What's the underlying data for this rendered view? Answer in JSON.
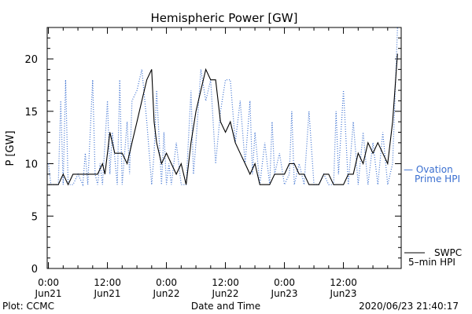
{
  "chart_data": {
    "type": "line",
    "title": "Hemispheric Power [GW]",
    "xlabel": "Date and Time",
    "ylabel": "P [GW]",
    "ylim": [
      0,
      23
    ],
    "yticks": [
      0,
      5,
      10,
      15,
      20
    ],
    "xlim": [
      -0.25,
      71.75
    ],
    "x_unit": "hours since 2020/06/21 00:00",
    "xticks": [
      {
        "x": 0,
        "line1": "0:00",
        "line2": "Jun21"
      },
      {
        "x": 12,
        "line1": "12:00",
        "line2": "Jun21"
      },
      {
        "x": 24,
        "line1": "0:00",
        "line2": "Jun22"
      },
      {
        "x": 36,
        "line1": "12:00",
        "line2": "Jun22"
      },
      {
        "x": 48,
        "line1": "0:00",
        "line2": "Jun23"
      },
      {
        "x": 60,
        "line1": "12:00",
        "line2": "Jun23"
      }
    ],
    "grid": false,
    "series": [
      {
        "name": "Ovation Prime HPI",
        "legend_lines": [
          "— Ovation",
          "Prime HPI"
        ],
        "color": "#3a6fd0",
        "style": "dotted",
        "x": [
          0,
          0.5,
          1,
          2,
          2.5,
          3,
          3.5,
          4,
          5,
          6,
          7,
          7.5,
          8,
          9,
          9.5,
          10,
          10.5,
          11,
          12,
          12.5,
          13,
          14,
          14.5,
          15,
          16,
          16.5,
          17,
          18,
          19,
          20,
          21,
          21.5,
          22,
          23,
          23.5,
          24,
          24.5,
          25,
          26,
          27,
          28,
          29,
          29.5,
          30,
          31,
          32,
          33,
          34,
          35,
          36,
          37,
          38,
          39,
          40,
          41,
          41.5,
          42,
          43,
          44,
          45,
          45.5,
          46,
          47,
          48,
          49,
          49.5,
          50,
          51,
          52,
          53,
          54,
          55,
          56,
          57,
          58,
          58.5,
          59,
          60,
          61,
          62,
          63,
          64,
          65,
          66,
          67,
          68,
          69,
          70,
          71
        ],
        "y": [
          10,
          8,
          8,
          8,
          16,
          8,
          18,
          8,
          8,
          9,
          8,
          11,
          8,
          18,
          9,
          8,
          10,
          8,
          16,
          9,
          13,
          8,
          18,
          8,
          14,
          9,
          16,
          17,
          19,
          14,
          8,
          11,
          17,
          8,
          13,
          8,
          10,
          8,
          12,
          8,
          8,
          17,
          9,
          12,
          19,
          16,
          18,
          10,
          15,
          18,
          18,
          12,
          16,
          10,
          16,
          9,
          13,
          8,
          12,
          8,
          14,
          9,
          11,
          8,
          9,
          15,
          8,
          10,
          8,
          15,
          8,
          8,
          9,
          8,
          8,
          15,
          9,
          17,
          8,
          14,
          8,
          13,
          8,
          12,
          8,
          13,
          8,
          10,
          23
        ]
      },
      {
        "name": "SWPC 5-min HPI",
        "legend_lines": [
          "SWPC",
          "5–min HPI"
        ],
        "color": "#000000",
        "style": "solid",
        "x": [
          0,
          2,
          3,
          4,
          5,
          6,
          7,
          8,
          10,
          11,
          11.5,
          12,
          12.5,
          13,
          13.5,
          14,
          15,
          16,
          17,
          18,
          19,
          20,
          21,
          21.5,
          22,
          23,
          24,
          25,
          26,
          27,
          28,
          29,
          30,
          31,
          32,
          33,
          34,
          35,
          36,
          37,
          38,
          39,
          40,
          41,
          42,
          43,
          44,
          45,
          46,
          47,
          48,
          49,
          50,
          51,
          52,
          53,
          54,
          55,
          56,
          57,
          58,
          59,
          60,
          61,
          62,
          63,
          64,
          65,
          66,
          67,
          68,
          69,
          70,
          71
        ],
        "y": [
          8,
          8,
          9,
          8,
          9,
          9,
          9,
          9,
          9,
          10,
          9,
          11,
          13,
          12,
          11,
          11,
          11,
          10,
          12,
          14,
          16,
          18,
          19,
          14,
          12,
          10,
          11,
          10,
          9,
          10,
          8,
          12,
          15,
          17,
          19,
          18,
          18,
          14,
          13,
          14,
          12,
          11,
          10,
          9,
          10,
          8,
          8,
          8,
          9,
          9,
          9,
          10,
          10,
          9,
          9,
          8,
          8,
          8,
          9,
          9,
          8,
          8,
          8,
          9,
          9,
          11,
          10,
          12,
          11,
          12,
          11,
          10,
          14,
          20.5
        ]
      }
    ],
    "footer_left": "Plot: CCMC",
    "footer_right": "2020/06/23 21:40:17"
  }
}
